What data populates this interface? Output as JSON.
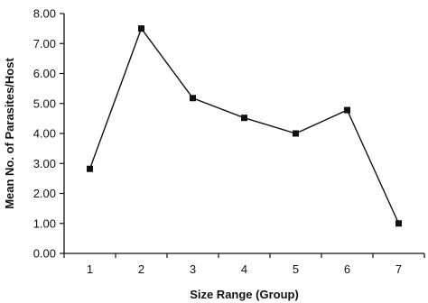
{
  "chart_data": {
    "type": "line",
    "title": "",
    "xlabel": "Size Range (Group)",
    "ylabel": "Mean No. of Parasites/Host",
    "x": [
      1,
      2,
      3,
      4,
      5,
      6,
      7
    ],
    "x_tick_labels": [
      "1",
      "2",
      "3",
      "4",
      "5",
      "6",
      "7"
    ],
    "y_tick_labels": [
      "0.00",
      "1.00",
      "2.00",
      "3.00",
      "4.00",
      "5.00",
      "6.00",
      "7.00",
      "8.00"
    ],
    "ylim": [
      0,
      8
    ],
    "grid": false,
    "legend": "none",
    "marker": "square",
    "series": [
      {
        "values": [
          2.82,
          7.5,
          5.18,
          4.52,
          4.0,
          4.78,
          1.0
        ]
      }
    ],
    "colors": {
      "line": "#111111",
      "marker": "#111111"
    }
  }
}
